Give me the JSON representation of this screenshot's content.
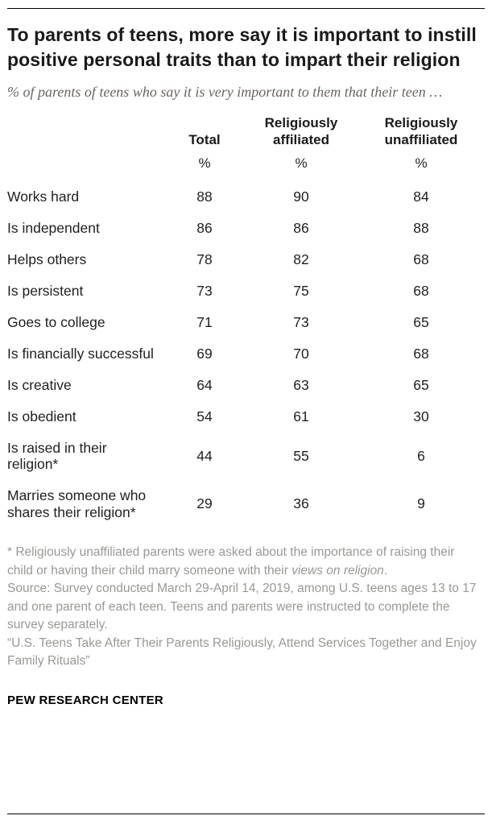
{
  "title": "To parents of teens, more say it is important to instill positive personal traits than to impart their religion",
  "subtitle": "% of parents of teens who say it is very important to them that their teen …",
  "chart_data": {
    "type": "table",
    "columns": [
      "",
      "Total",
      "Religiously affiliated",
      "Religiously unaffiliated"
    ],
    "unit_row": [
      "%",
      "%",
      "%"
    ],
    "rows": [
      {
        "label": "Works hard",
        "values": [
          88,
          90,
          84
        ]
      },
      {
        "label": "Is independent",
        "values": [
          86,
          86,
          88
        ]
      },
      {
        "label": "Helps others",
        "values": [
          78,
          82,
          68
        ]
      },
      {
        "label": "Is persistent",
        "values": [
          73,
          75,
          68
        ]
      },
      {
        "label": "Goes to college",
        "values": [
          71,
          73,
          65
        ]
      },
      {
        "label": "Is financially successful",
        "values": [
          69,
          70,
          68
        ]
      },
      {
        "label": "Is creative",
        "values": [
          64,
          63,
          65
        ]
      },
      {
        "label": "Is obedient",
        "values": [
          54,
          61,
          30
        ]
      },
      {
        "label": "Is raised in their religion*",
        "values": [
          44,
          55,
          6
        ]
      },
      {
        "label": "Marries someone who shares their religion*",
        "values": [
          29,
          36,
          9
        ]
      }
    ]
  },
  "notes": {
    "footnote_start": "* Religiously unaffiliated parents were asked about the importance of raising their child or having their child marry someone with their ",
    "footnote_italic": "views on religion",
    "footnote_end": ".",
    "source": "Source: Survey conducted March 29-April 14, 2019, among U.S. teens ages 13 to 17 and one parent of each teen. Teens and parents were instructed to complete the survey separately.",
    "report": "“U.S. Teens Take After Their Parents Religiously, Attend Services Together and Enjoy Family Rituals”"
  },
  "footer": {
    "brand": "PEW RESEARCH CENTER"
  }
}
